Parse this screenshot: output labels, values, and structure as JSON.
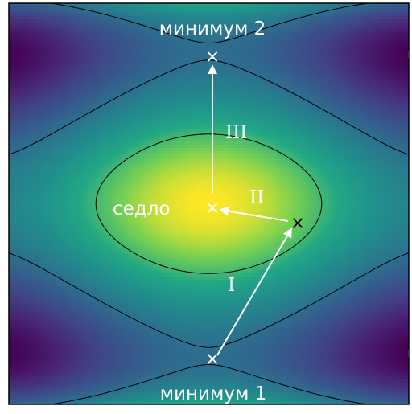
{
  "labels": {
    "minimum1": "минимум 1",
    "minimum2": "минимум 2",
    "saddle": "седло",
    "step1": "I",
    "step2": "II",
    "step3": "III"
  },
  "markers": {
    "cross_white": "×",
    "cross_black": "×"
  },
  "colors": {
    "dark": "#440154",
    "mid": "#26828e",
    "bright": "#fde725",
    "arrow": "#ffffff",
    "contour": "#000000"
  }
}
